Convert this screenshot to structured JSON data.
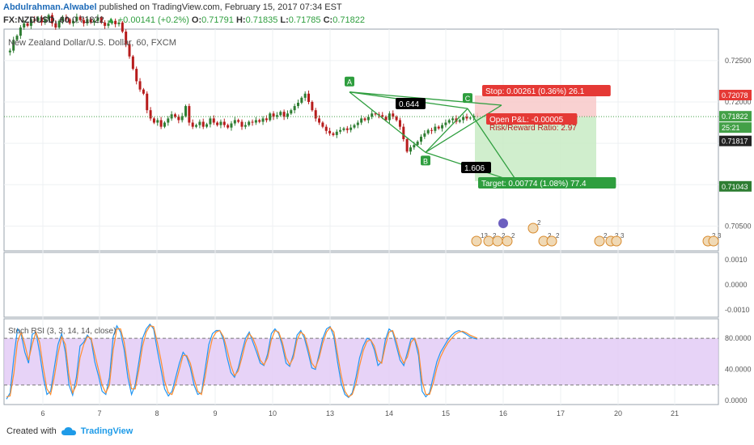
{
  "header": {
    "author": "Abdulrahman.Alwabel",
    "published": "published on TradingView.com, February 15, 2017 07:34 EST",
    "symbol": "FX:NZDUSD, 60",
    "last": "0.71822",
    "change": "+0.00141 (+0.2%)",
    "ohlc_o_label": "O:",
    "ohlc_o": "0.71791",
    "ohlc_h_label": "H:",
    "ohlc_h": "0.71835",
    "ohlc_l_label": "L:",
    "ohlc_l": "0.71785",
    "ohlc_c_label": "C:",
    "ohlc_c": "0.71822"
  },
  "footer": {
    "created_with": "Created with",
    "brand": "TradingView"
  },
  "chart_data": [
    {
      "type": "candlestick",
      "title": "New Zealand Dollar/U.S. Dollar, 60, FXCM",
      "x_ticks": [
        "6",
        "7",
        "8",
        "9",
        "10",
        "13",
        "14",
        "15",
        "16",
        "17",
        "20",
        "21"
      ],
      "y_ticks": [
        "0.72500",
        "0.72000",
        "0.71500",
        "0.71000",
        "0.70500"
      ],
      "ylim": [
        0.702,
        0.7288
      ],
      "series": [
        {
          "values": [
            0.726,
            0.7262,
            0.7275,
            0.728,
            0.729,
            0.7295,
            0.7292,
            0.73,
            0.7298,
            0.7302,
            0.7296,
            0.73,
            0.7305,
            0.7295,
            0.729,
            0.7298,
            0.7302,
            0.73,
            0.7295,
            0.7298,
            0.7303,
            0.7299,
            0.7295,
            0.73,
            0.7296,
            0.7298,
            0.7302,
            0.7296,
            0.7292,
            0.7295,
            0.7298,
            0.7294,
            0.7296,
            0.7285,
            0.727,
            0.7255,
            0.724,
            0.7225,
            0.7215,
            0.721,
            0.719,
            0.718,
            0.7175,
            0.7178,
            0.717,
            0.7175,
            0.718,
            0.7185,
            0.7182,
            0.7178,
            0.7183,
            0.7195,
            0.7175,
            0.717,
            0.7172,
            0.7176,
            0.717,
            0.7173,
            0.718,
            0.7175,
            0.7172,
            0.7176,
            0.7172,
            0.7169,
            0.7174,
            0.7178,
            0.7176,
            0.717,
            0.7172,
            0.7176,
            0.7175,
            0.7178,
            0.7176,
            0.718,
            0.7178,
            0.7186,
            0.7182,
            0.7184,
            0.7188,
            0.7182,
            0.7186,
            0.719,
            0.7195,
            0.7199,
            0.7205,
            0.721,
            0.72,
            0.719,
            0.718,
            0.7175,
            0.717,
            0.7165,
            0.7162,
            0.716,
            0.7164,
            0.7166,
            0.7168,
            0.7166,
            0.7169,
            0.7172,
            0.7175,
            0.718,
            0.7178,
            0.7182,
            0.7186,
            0.7185,
            0.7184,
            0.7182,
            0.7178,
            0.7186,
            0.7182,
            0.7178,
            0.717,
            0.7155,
            0.714,
            0.7145,
            0.7148,
            0.7152,
            0.7158,
            0.7162,
            0.7166,
            0.7165,
            0.717,
            0.7168,
            0.7172,
            0.7175,
            0.7178,
            0.718,
            0.7176,
            0.7178,
            0.7182,
            0.718,
            0.7181,
            0.7183,
            0.7182
          ]
        }
      ],
      "harmonic_pattern": {
        "points": [
          {
            "label": "A",
            "price": 0.7212
          },
          {
            "label": "B",
            "price": 0.7139
          },
          {
            "label": "C",
            "price": 0.7192
          }
        ],
        "ratio_1": "0.644",
        "ratio_2": "1.606"
      },
      "position": {
        "stop": "Stop: 0.00261 (0.36%) 26.1",
        "pnl": "Open P&L: -0.00005",
        "rr": "Risk/Reward Ratio: 2.97",
        "target": "Target: 0.00774 (1.08%) 77.4",
        "entry": 0.71817,
        "stop_price": 0.72078,
        "target_price": 0.71043
      },
      "price_labels": [
        {
          "text": "0.72078",
          "color": "#e53935"
        },
        {
          "text": "0.71822",
          "color": "#43a047"
        },
        {
          "text": "25:21",
          "color": "#43a047"
        },
        {
          "text": "0.71817",
          "color": "#222222"
        },
        {
          "text": "0.71043",
          "color": "#2e7d32"
        }
      ],
      "event_counts": [
        "13",
        "2",
        "2",
        "2",
        "2",
        "2",
        "2",
        "2",
        "2",
        "3",
        "2",
        "3"
      ]
    },
    {
      "type": "line",
      "y_ticks": [
        "0.0010",
        "0.0000",
        "-0.0010"
      ],
      "ylim": [
        -0.0013,
        0.0013
      ]
    },
    {
      "type": "line",
      "title": "Stoch RSI (3, 3, 14, 14, close)",
      "y_ticks": [
        "80.0000",
        "40.0000",
        "0.0000"
      ],
      "ylim": [
        -5,
        105
      ],
      "band": [
        20,
        80
      ],
      "series": [
        {
          "color": "#2196f3",
          "values": [
            2,
            10,
            55,
            92,
            85,
            62,
            48,
            85,
            88,
            62,
            30,
            8,
            12,
            42,
            72,
            86,
            62,
            20,
            7,
            30,
            70,
            75,
            84,
            78,
            50,
            32,
            12,
            8,
            30,
            82,
            96,
            88,
            65,
            30,
            8,
            20,
            50,
            80,
            92,
            98,
            92,
            65,
            40,
            15,
            6,
            12,
            30,
            48,
            62,
            56,
            42,
            20,
            8,
            10,
            40,
            72,
            86,
            90,
            90,
            78,
            55,
            36,
            30,
            42,
            62,
            80,
            88,
            75,
            62,
            48,
            45,
            60,
            86,
            92,
            86,
            70,
            48,
            44,
            60,
            84,
            90,
            80,
            62,
            42,
            40,
            60,
            80,
            92,
            95,
            82,
            50,
            22,
            8,
            4,
            10,
            30,
            55,
            70,
            80,
            78,
            65,
            45,
            50,
            78,
            92,
            88,
            70,
            52,
            45,
            62,
            80,
            78,
            58,
            12,
            5,
            10,
            30,
            50,
            62,
            70,
            78,
            84,
            88,
            90,
            88,
            85,
            82,
            80,
            79
          ]
        },
        {
          "color": "#ff8c2e",
          "values": [
            5,
            6,
            35,
            75,
            88,
            72,
            52,
            72,
            88,
            75,
            42,
            15,
            8,
            30,
            60,
            82,
            72,
            32,
            10,
            20,
            55,
            72,
            82,
            80,
            60,
            40,
            20,
            10,
            20,
            65,
            92,
            92,
            75,
            42,
            15,
            15,
            40,
            70,
            88,
            96,
            95,
            75,
            52,
            25,
            10,
            8,
            22,
            40,
            58,
            58,
            48,
            28,
            12,
            8,
            30,
            60,
            80,
            88,
            90,
            82,
            65,
            45,
            32,
            38,
            55,
            74,
            86,
            80,
            68,
            52,
            46,
            55,
            78,
            90,
            88,
            75,
            55,
            46,
            55,
            78,
            88,
            84,
            68,
            48,
            42,
            55,
            74,
            88,
            94,
            88,
            60,
            32,
            12,
            5,
            8,
            22,
            45,
            64,
            76,
            78,
            70,
            52,
            48,
            70,
            88,
            90,
            76,
            58,
            48,
            56,
            75,
            80,
            65,
            25,
            8,
            8,
            22,
            42,
            56,
            66,
            74,
            80,
            85,
            88,
            89,
            87,
            84,
            82,
            80
          ]
        }
      ]
    }
  ]
}
